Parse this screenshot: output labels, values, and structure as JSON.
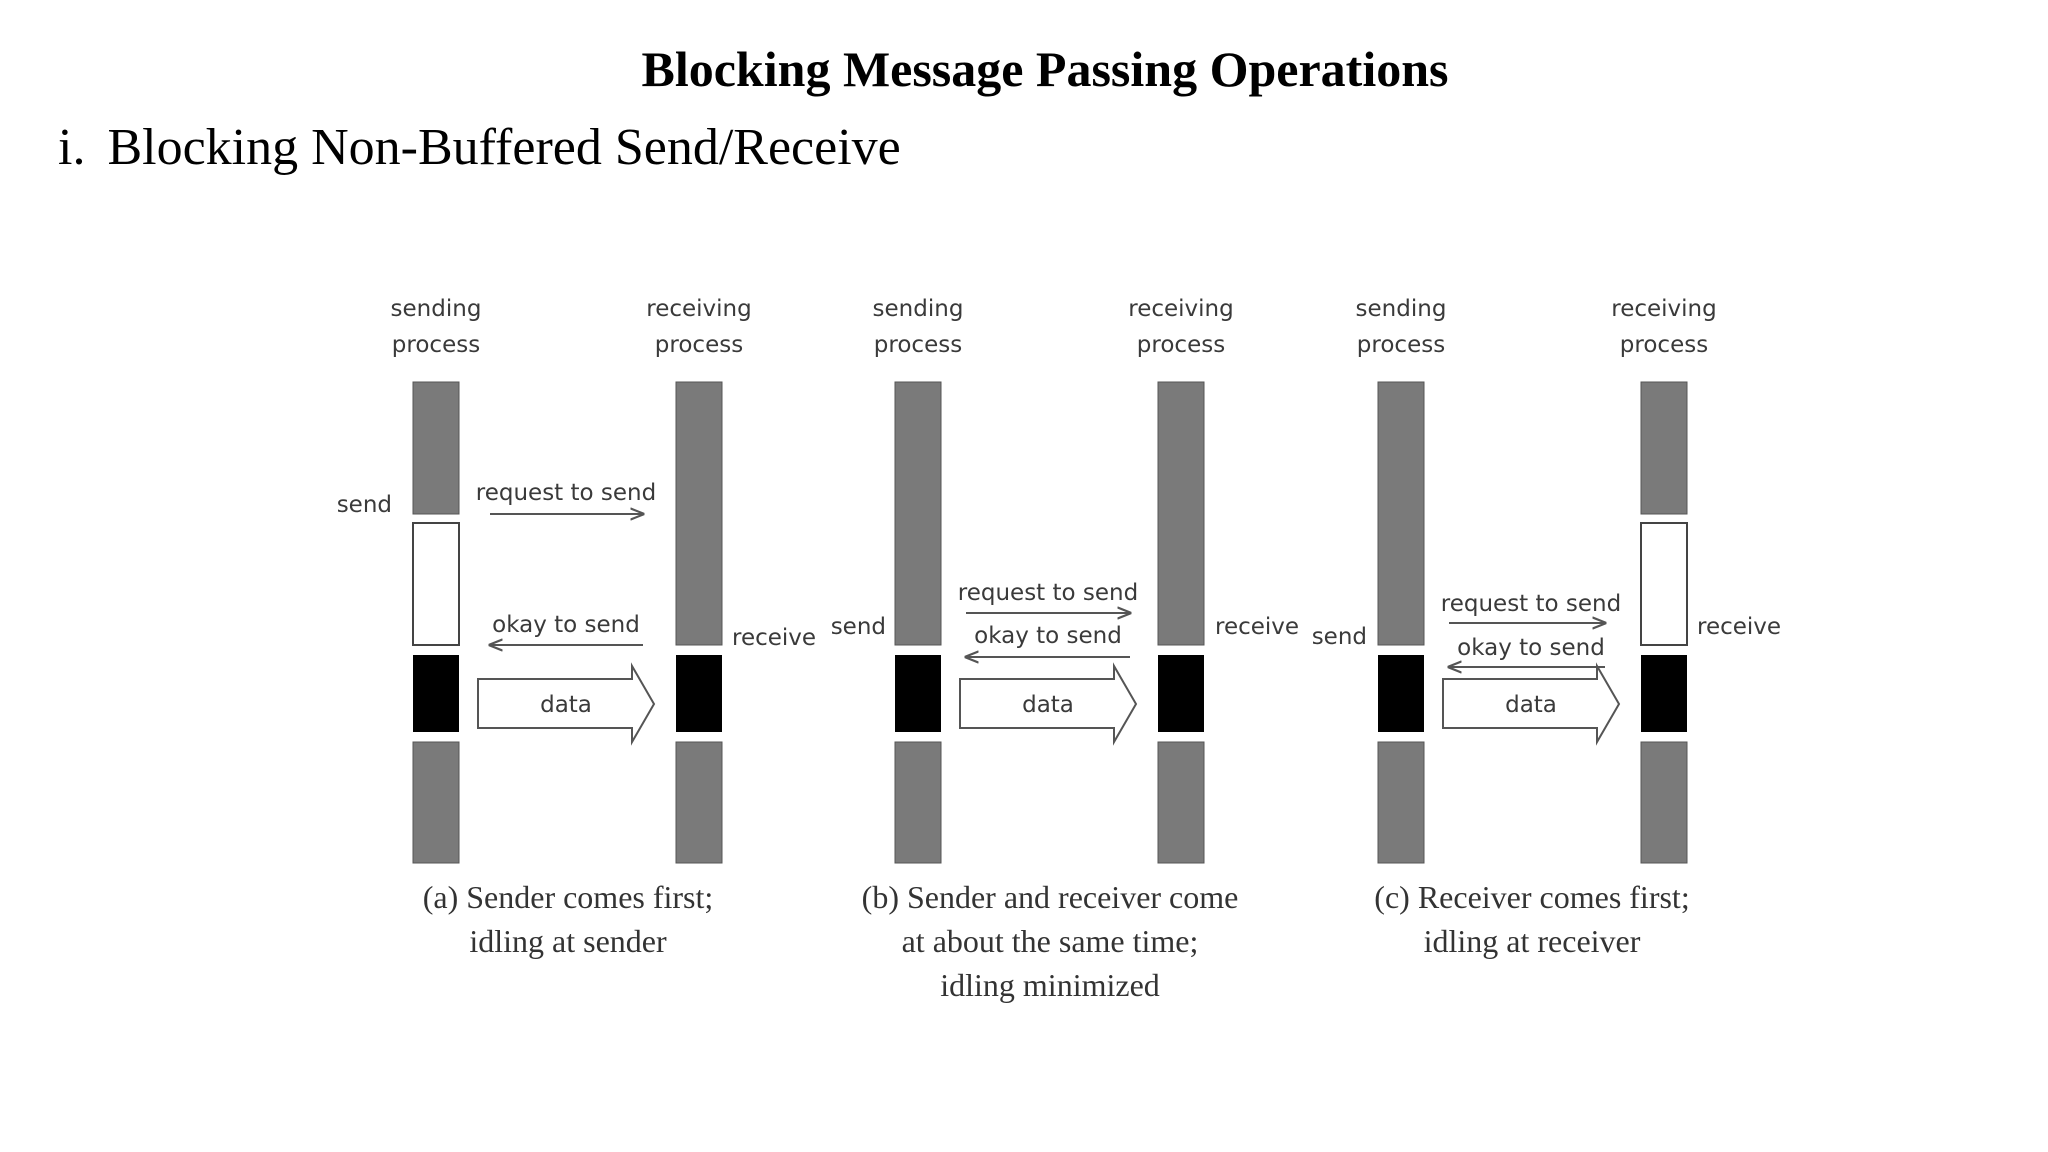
{
  "title": "Blocking Message Passing Operations",
  "section": {
    "number": "i.",
    "label": "Blocking Non-Buffered Send/Receive"
  },
  "panels": [
    {
      "id": "a",
      "sender_label": [
        "sending",
        "process"
      ],
      "receiver_label": [
        "receiving",
        "process"
      ],
      "call_left": "send",
      "call_right": "receive",
      "request_label": "request to send",
      "okay_label": "okay to send",
      "data_label": "data",
      "caption": [
        "(a) Sender comes first;",
        "idling at sender"
      ]
    },
    {
      "id": "b",
      "sender_label": [
        "sending",
        "process"
      ],
      "receiver_label": [
        "receiving",
        "process"
      ],
      "call_left": "send",
      "call_right": "receive",
      "request_label": "request to send",
      "okay_label": "okay to send",
      "data_label": "data",
      "caption": [
        "(b) Sender and receiver come",
        "at about the same time;",
        "idling minimized"
      ]
    },
    {
      "id": "c",
      "sender_label": [
        "sending",
        "process"
      ],
      "receiver_label": [
        "receiving",
        "process"
      ],
      "call_left": "send",
      "call_right": "receive",
      "request_label": "request to send",
      "okay_label": "okay to send",
      "data_label": "data",
      "caption": [
        "(c) Receiver comes first;",
        "idling at receiver"
      ]
    }
  ],
  "colors": {
    "active": "#7a7a7a",
    "transfer": "#000000",
    "idle": "#ffffff",
    "arrow": "#555555"
  }
}
